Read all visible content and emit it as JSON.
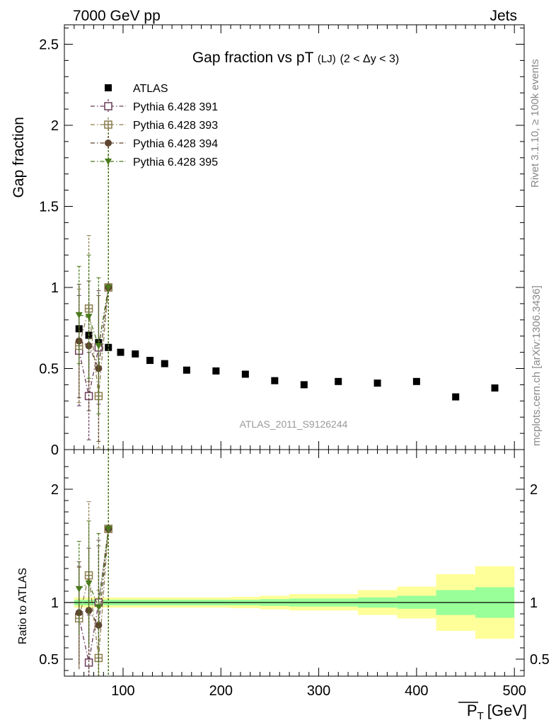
{
  "header": {
    "left_label": "7000 GeV pp",
    "right_label": "Jets"
  },
  "side_text": {
    "rivet": "Rivet 3.1.10, ≥ 100k events",
    "mcplots": "mcplots.cern.ch [arXiv:1306.3436]"
  },
  "analysis_tag": "ATLAS_2011_S9126244",
  "chart_data": [
    {
      "type": "scatter",
      "panel": "main",
      "title": "Gap fraction vs pT (LJ) (2 < Δy < 3)",
      "title_main": "Gap fraction vs pT",
      "title_sub": "(LJ)",
      "title_range": "(2 < Δy < 3)",
      "ylabel": "Gap fraction",
      "xlim": [
        40,
        510
      ],
      "ylim": [
        0,
        2.62
      ],
      "y_ticks": [
        0,
        0.5,
        1,
        1.5,
        2,
        2.5
      ],
      "y_tick_labels": [
        "0",
        "0.5",
        "1",
        "1.5",
        "2",
        "2.5"
      ],
      "legend_position": "top-left",
      "series": [
        {
          "name": "ATLAS",
          "marker": "filled-square",
          "color": "#000000",
          "x": [
            55,
            65,
            75,
            85,
            97.5,
            112.5,
            127.5,
            142.5,
            165,
            195,
            225,
            255,
            285,
            320,
            360,
            400,
            440,
            480
          ],
          "y": [
            0.745,
            0.705,
            0.66,
            0.63,
            0.6,
            0.59,
            0.55,
            0.53,
            0.49,
            0.485,
            0.465,
            0.425,
            0.4,
            0.42,
            0.41,
            0.42,
            0.325,
            0.38
          ]
        },
        {
          "name": "Pythia 6.428 391",
          "marker": "open-square",
          "color": "#6b3d5a",
          "x": [
            55,
            65,
            75,
            85
          ],
          "y": [
            0.61,
            0.33,
            0.63,
            1.0
          ],
          "err_low": [
            0.34,
            0.27,
            0.35,
            1.0
          ],
          "err_high": [
            0.34,
            0.27,
            0.35,
            1.0
          ]
        },
        {
          "name": "Pythia 6.428 393",
          "marker": "open-square-cross",
          "color": "#8c7d4e",
          "x": [
            55,
            65,
            75,
            85
          ],
          "y": [
            0.64,
            0.87,
            0.33,
            1.0
          ],
          "err_low": [
            0.35,
            0.45,
            0.32,
            1.0
          ],
          "err_high": [
            0.35,
            0.45,
            0.32,
            1.0
          ]
        },
        {
          "name": "Pythia 6.428 394",
          "marker": "filled-circle",
          "color": "#5e4530",
          "x": [
            55,
            65,
            75,
            85
          ],
          "y": [
            0.67,
            0.64,
            0.5,
            1.0
          ],
          "err_low": [
            0.35,
            0.4,
            0.45,
            1.0
          ],
          "err_high": [
            0.35,
            0.4,
            0.45,
            1.0
          ]
        },
        {
          "name": "Pythia 6.428 395",
          "marker": "filled-triangle-down",
          "color": "#4a7a1c",
          "x": [
            55,
            65,
            75,
            85
          ],
          "y": [
            0.83,
            0.82,
            0.64,
            1.0
          ],
          "err_low": [
            0.3,
            0.38,
            0.42,
            1.0
          ],
          "err_high": [
            0.3,
            0.38,
            0.42,
            1.0
          ]
        }
      ]
    },
    {
      "type": "scatter",
      "panel": "ratio",
      "ylabel": "Ratio to ATLAS",
      "xlabel": "P_T [GeV]",
      "xlabel_main": "P",
      "xlabel_sub": "T",
      "xlabel_unit": "[GeV]",
      "xlim": [
        40,
        510
      ],
      "ylim": [
        0.35,
        2.35
      ],
      "x_ticks": [
        100,
        200,
        300,
        400,
        500
      ],
      "x_tick_labels": [
        "100",
        "200",
        "300",
        "400",
        "500"
      ],
      "y_ticks": [
        0.5,
        1,
        2
      ],
      "y_tick_labels": [
        "0.5",
        "1",
        "2"
      ],
      "band_colors": {
        "outer": "#ffff99",
        "inner": "#99ff99"
      },
      "bands": {
        "edges": [
          50,
          60,
          70,
          80,
          90,
          105,
          120,
          135,
          150,
          180,
          210,
          240,
          270,
          300,
          340,
          380,
          420,
          460,
          500
        ],
        "inner_low": [
          0.975,
          0.975,
          0.975,
          0.975,
          0.975,
          0.975,
          0.975,
          0.975,
          0.975,
          0.975,
          0.975,
          0.97,
          0.965,
          0.965,
          0.955,
          0.945,
          0.89,
          0.865
        ],
        "inner_high": [
          1.025,
          1.025,
          1.025,
          1.025,
          1.025,
          1.025,
          1.025,
          1.025,
          1.025,
          1.025,
          1.025,
          1.03,
          1.035,
          1.035,
          1.045,
          1.06,
          1.11,
          1.135
        ],
        "outer_low": [
          0.955,
          0.955,
          0.955,
          0.955,
          0.955,
          0.955,
          0.955,
          0.955,
          0.955,
          0.955,
          0.95,
          0.94,
          0.93,
          0.93,
          0.89,
          0.86,
          0.75,
          0.68
        ],
        "outer_high": [
          1.045,
          1.045,
          1.045,
          1.045,
          1.045,
          1.045,
          1.045,
          1.045,
          1.045,
          1.045,
          1.05,
          1.06,
          1.075,
          1.075,
          1.11,
          1.14,
          1.25,
          1.32
        ]
      },
      "series": [
        {
          "name": "Pythia 6.428 391",
          "x": [
            55,
            65,
            75,
            85
          ],
          "y": [
            0.87,
            0.47,
            1.0,
            1.65
          ],
          "err_low": [
            0.45,
            0.4,
            0.5,
            1.6
          ],
          "err_high": [
            0.45,
            0.42,
            0.55,
            1.6
          ]
        },
        {
          "name": "Pythia 6.428 393",
          "x": [
            55,
            65,
            75,
            85
          ],
          "y": [
            0.86,
            1.24,
            0.51,
            1.65
          ],
          "err_low": [
            0.45,
            0.6,
            0.48,
            1.6
          ],
          "err_high": [
            0.45,
            0.65,
            0.6,
            1.6
          ]
        },
        {
          "name": "Pythia 6.428 394",
          "x": [
            55,
            65,
            75,
            85
          ],
          "y": [
            0.91,
            0.93,
            0.8,
            1.65
          ],
          "err_low": [
            0.45,
            0.55,
            0.7,
            1.6
          ],
          "err_high": [
            0.45,
            0.55,
            0.7,
            1.6
          ]
        },
        {
          "name": "Pythia 6.428 395",
          "x": [
            55,
            65,
            75,
            85
          ],
          "y": [
            1.12,
            1.17,
            0.96,
            1.65
          ],
          "err_low": [
            0.4,
            0.55,
            0.65,
            1.6
          ],
          "err_high": [
            0.42,
            0.55,
            0.65,
            1.6
          ]
        }
      ]
    }
  ]
}
